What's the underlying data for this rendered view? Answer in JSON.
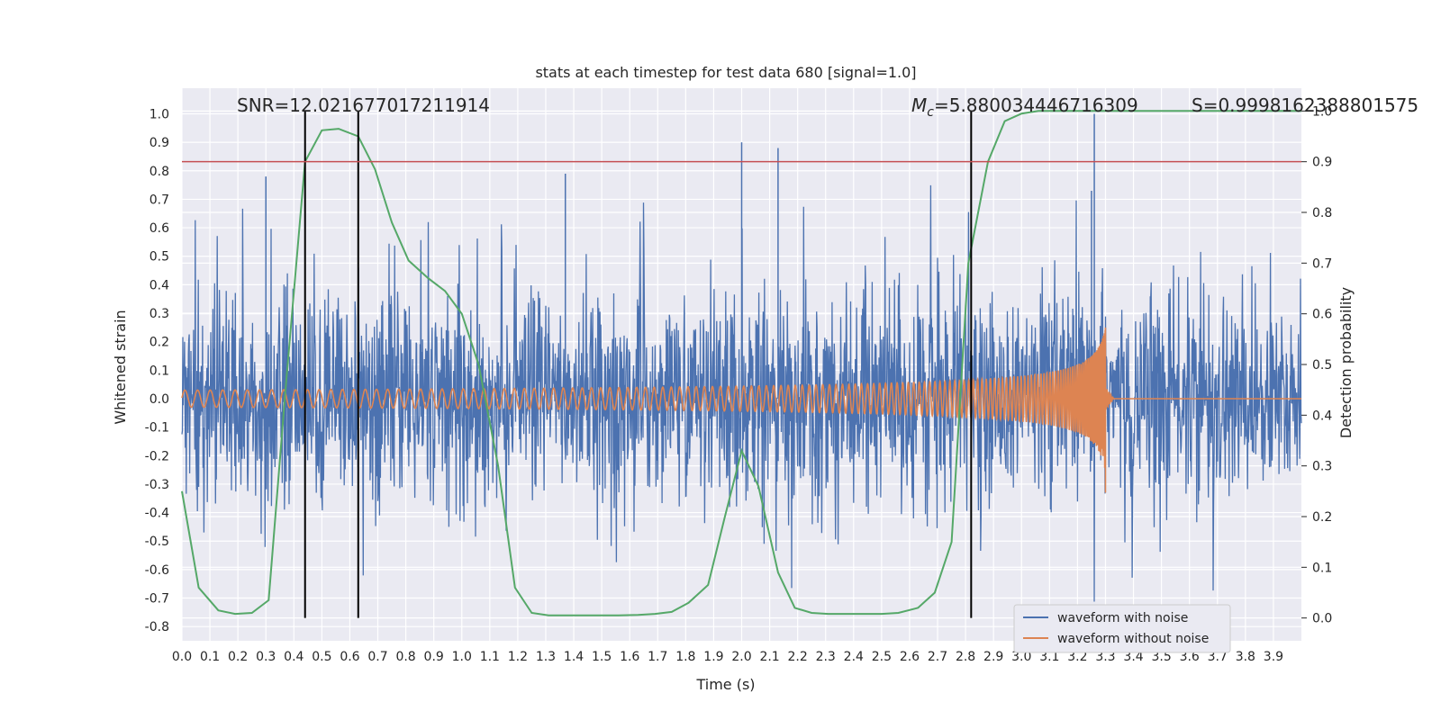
{
  "chart_data": {
    "type": "line",
    "title": "stats at each timestep for test data 680 [signal=1.0]",
    "xlabel": "Time (s)",
    "ylabel_left": "Whitened strain",
    "ylabel_right": "Detection probability",
    "xlim": [
      0.0,
      4.0
    ],
    "ylim_left": [
      -0.85,
      1.09
    ],
    "ylim_right": [
      -0.045,
      1.045
    ],
    "x_ticks": [
      "0.0",
      "0.1",
      "0.2",
      "0.3",
      "0.4",
      "0.5",
      "0.6",
      "0.7",
      "0.8",
      "0.9",
      "1.0",
      "1.1",
      "1.2",
      "1.3",
      "1.4",
      "1.5",
      "1.6",
      "1.7",
      "1.8",
      "1.9",
      "2.0",
      "2.1",
      "2.2",
      "2.3",
      "2.4",
      "2.5",
      "2.6",
      "2.7",
      "2.8",
      "2.9",
      "3.0",
      "3.1",
      "3.2",
      "3.3",
      "3.4",
      "3.5",
      "3.6",
      "3.7",
      "3.8",
      "3.9"
    ],
    "y_ticks_left": [
      "-0.8",
      "-0.7",
      "-0.6",
      "-0.5",
      "-0.4",
      "-0.3",
      "-0.2",
      "-0.1",
      "0.0",
      "0.1",
      "0.2",
      "0.3",
      "0.4",
      "0.5",
      "0.6",
      "0.7",
      "0.8",
      "0.9",
      "1.0"
    ],
    "y_ticks_right": [
      "0.0",
      "0.1",
      "0.2",
      "0.3",
      "0.4",
      "0.5",
      "0.6",
      "0.7",
      "0.8",
      "0.9",
      "1.0"
    ],
    "grid": true,
    "legend_position": "lower-right",
    "annotations": {
      "snr": "SNR=12.021677017211914",
      "mc_symbol": "M",
      "mc_sub": "c",
      "mc_value": "=5.880034446716309",
      "s": "S=0.9998162388801575"
    },
    "threshold_probability": 0.9,
    "vertical_markers": [
      0.44,
      0.63,
      2.82
    ],
    "series": [
      {
        "name": "waveform with noise",
        "color": "#4c72b0",
        "axis": "left",
        "description_values": {
          "min": -0.75,
          "max": 1.0,
          "spikes": [
            [
              0.3,
              0.78
            ],
            [
              1.37,
              0.79
            ],
            [
              2.0,
              0.9
            ],
            [
              2.13,
              0.88
            ],
            [
              3.26,
              1.0
            ],
            [
              3.25,
              0.73
            ]
          ]
        }
      },
      {
        "name": "waveform without noise",
        "color": "#dd8452",
        "axis": "left",
        "chirp": {
          "start_amplitude": 0.03,
          "peak_amplitude": 0.26,
          "merger_time": 3.3,
          "start_frequency": 22
        }
      },
      {
        "name": "detection probability",
        "color": "#55a868",
        "axis": "right",
        "x": [
          0.0,
          0.06,
          0.13,
          0.19,
          0.25,
          0.31,
          0.37,
          0.44,
          0.5,
          0.56,
          0.63,
          0.69,
          0.75,
          0.81,
          0.88,
          0.94,
          1.0,
          1.06,
          1.13,
          1.19,
          1.25,
          1.31,
          1.38,
          1.44,
          1.5,
          1.56,
          1.63,
          1.69,
          1.75,
          1.81,
          1.88,
          1.94,
          2.0,
          2.06,
          2.13,
          2.19,
          2.25,
          2.31,
          2.38,
          2.44,
          2.5,
          2.56,
          2.63,
          2.69,
          2.75,
          2.81,
          2.88,
          2.94,
          3.0,
          3.06,
          3.13,
          3.19,
          3.25,
          3.31,
          3.38,
          3.44,
          3.5,
          3.56,
          3.63,
          3.69,
          3.75,
          3.81,
          3.88,
          3.94,
          4.0
        ],
        "y": [
          0.25,
          0.06,
          0.015,
          0.008,
          0.01,
          0.035,
          0.45,
          0.9,
          0.962,
          0.965,
          0.95,
          0.885,
          0.78,
          0.705,
          0.67,
          0.645,
          0.6,
          0.5,
          0.3,
          0.06,
          0.01,
          0.005,
          0.005,
          0.005,
          0.005,
          0.005,
          0.006,
          0.008,
          0.012,
          0.03,
          0.065,
          0.2,
          0.33,
          0.26,
          0.09,
          0.02,
          0.01,
          0.008,
          0.008,
          0.008,
          0.008,
          0.01,
          0.02,
          0.05,
          0.15,
          0.7,
          0.9,
          0.98,
          0.995,
          1.0,
          1.0,
          1.0,
          1.0,
          1.0,
          1.0,
          1.0,
          1.0,
          1.0,
          1.0,
          1.0,
          1.0,
          1.0,
          1.0,
          1.0,
          1.0
        ]
      }
    ]
  },
  "colors": {
    "background": "#eaeaf2",
    "grid": "#ffffff",
    "threshold_line": "#c44e52",
    "markers": "#000000"
  }
}
